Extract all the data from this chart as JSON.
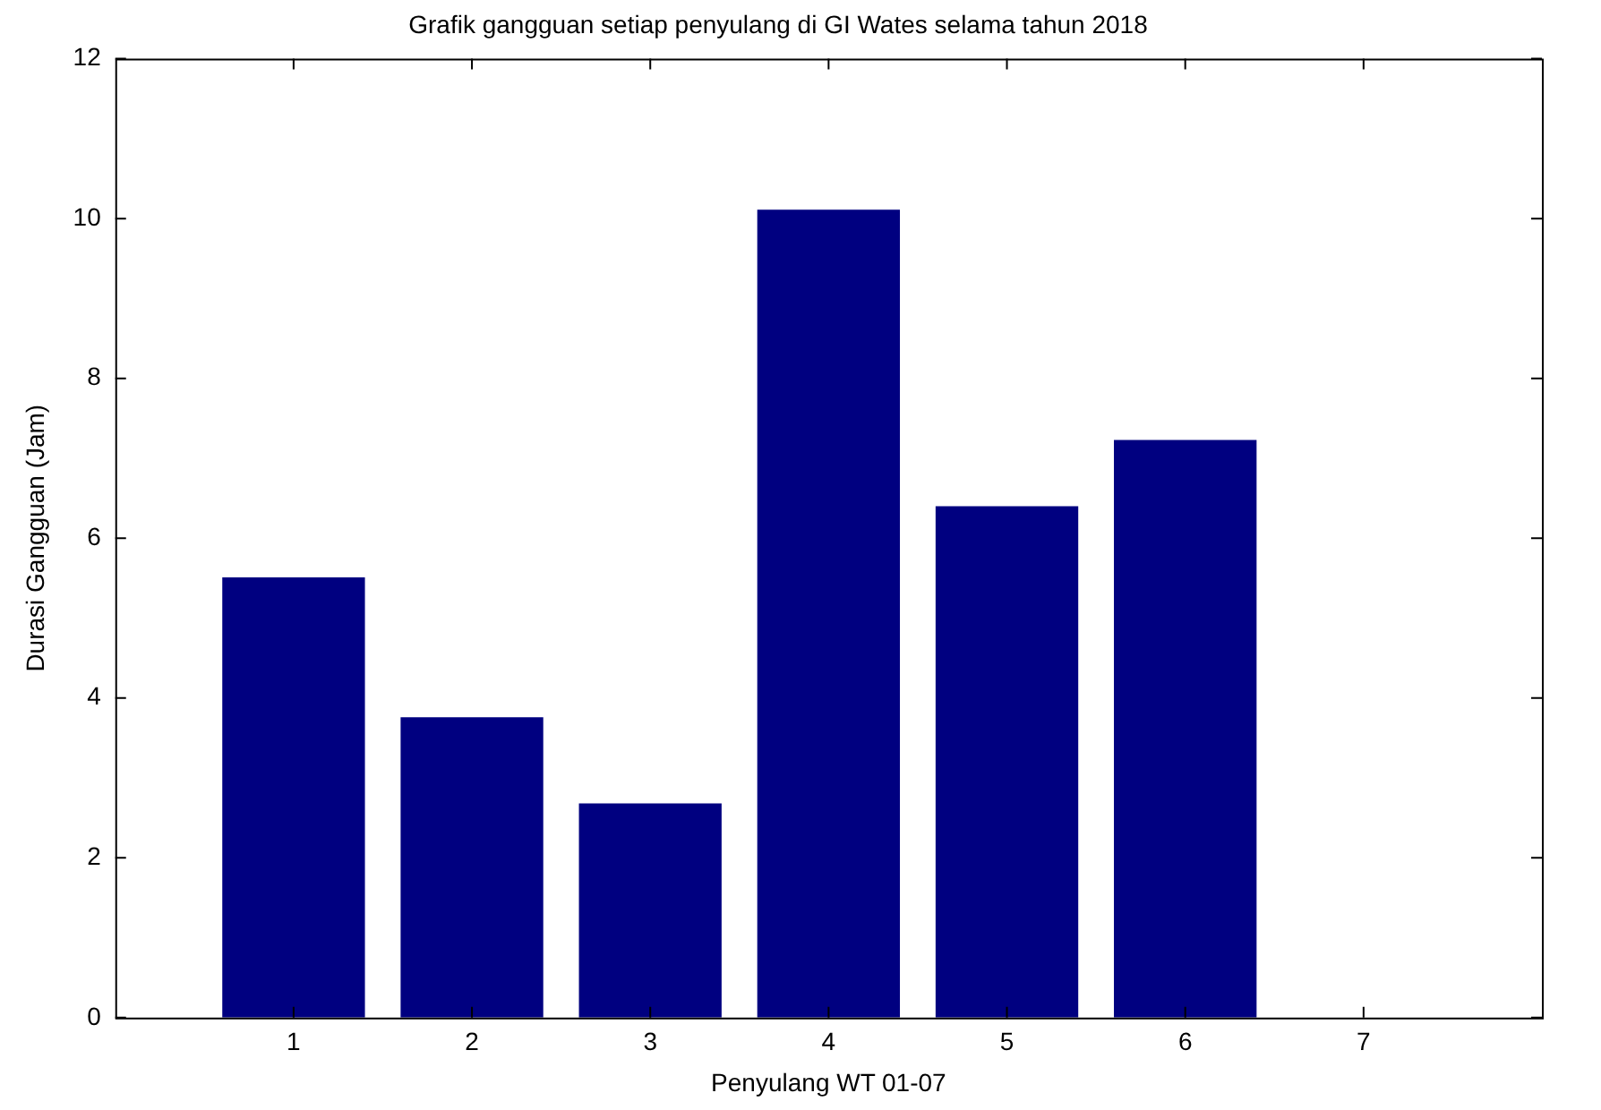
{
  "chart_data": {
    "type": "bar",
    "title": "Grafik gangguan setiap penyulang di GI Wates selama tahun 2018",
    "xlabel": "Penyulang WT 01-07",
    "ylabel": "Durasi Gangguan (Jam)",
    "x": [
      1,
      2,
      3,
      4,
      5,
      6,
      7
    ],
    "values": [
      5.51,
      3.76,
      2.68,
      10.11,
      6.4,
      7.23,
      0
    ],
    "color": "#000080",
    "xlim": [
      0,
      8
    ],
    "xticks": [
      1,
      2,
      3,
      4,
      5,
      6,
      7
    ],
    "ylim": [
      0,
      12
    ],
    "yticks": [
      0,
      2,
      4,
      6,
      8,
      10,
      12
    ],
    "grid": false,
    "legend": false
  }
}
